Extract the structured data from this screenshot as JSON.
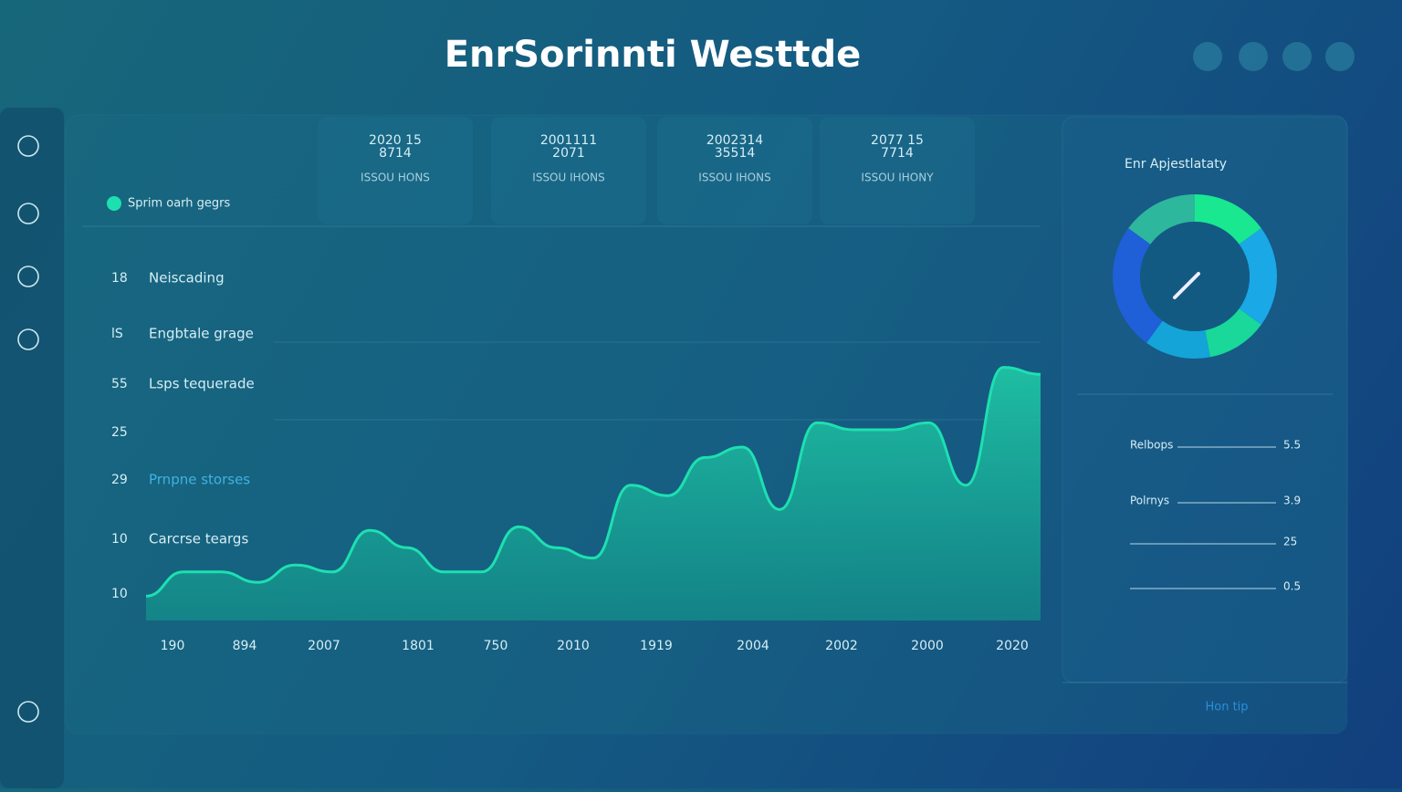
{
  "header": {
    "title": "EnrSorinnti Westtde"
  },
  "cards": [
    {
      "line1": "2020 15",
      "line2": "8714",
      "caption": "ISSOU HONS"
    },
    {
      "line1": "2001111",
      "line2": "2071",
      "caption": "ISSOU IHONS"
    },
    {
      "line1": "2002314",
      "line2": "35514",
      "caption": "ISSOU IHONS"
    },
    {
      "line1": "2077 15",
      "line2": "7714",
      "caption": "ISSOU IHONY"
    }
  ],
  "legend": "Sprim oarh gegrs",
  "rows": [
    {
      "number": "18",
      "label": "Neiscading"
    },
    {
      "number": "lS",
      "label": "Engbtale grage"
    },
    {
      "number": "55",
      "label": "Lsps tequerade"
    },
    {
      "number": "25",
      "label": ""
    },
    {
      "number": "29",
      "label": "Prnpne storses"
    },
    {
      "number": "10",
      "label": "Carcrse teargs"
    },
    {
      "number": "10",
      "label": ""
    }
  ],
  "chart_data": {
    "type": "area",
    "color": "#1de0b0",
    "values": [
      7,
      14,
      14,
      11,
      16,
      14,
      26,
      21,
      14,
      14,
      27,
      21,
      18,
      39,
      36,
      47,
      50,
      32,
      57,
      55,
      55,
      57,
      39,
      73,
      71
    ],
    "ylim": [
      0,
      100
    ],
    "xaxis_labels": [
      "190",
      "894",
      "2007",
      "1801",
      "750",
      "2010",
      "1919",
      "2004",
      "2002",
      "2000",
      "2020"
    ]
  },
  "donut": {
    "title": "Enr Apjestlataty",
    "values": [
      15,
      20,
      12,
      13,
      25,
      15
    ],
    "colors": [
      "#19e890",
      "#1aa8e6",
      "#19d89a",
      "#14a4d8",
      "#1f5fd8",
      "#2db79c"
    ]
  },
  "stats": [
    {
      "label": "Relbops",
      "value": "5.5"
    },
    {
      "label": "Polrnys",
      "value": "3.9"
    },
    {
      "label": "",
      "value": "25"
    },
    {
      "label": "",
      "value": "0.5"
    }
  ],
  "footer": "Hon tip"
}
